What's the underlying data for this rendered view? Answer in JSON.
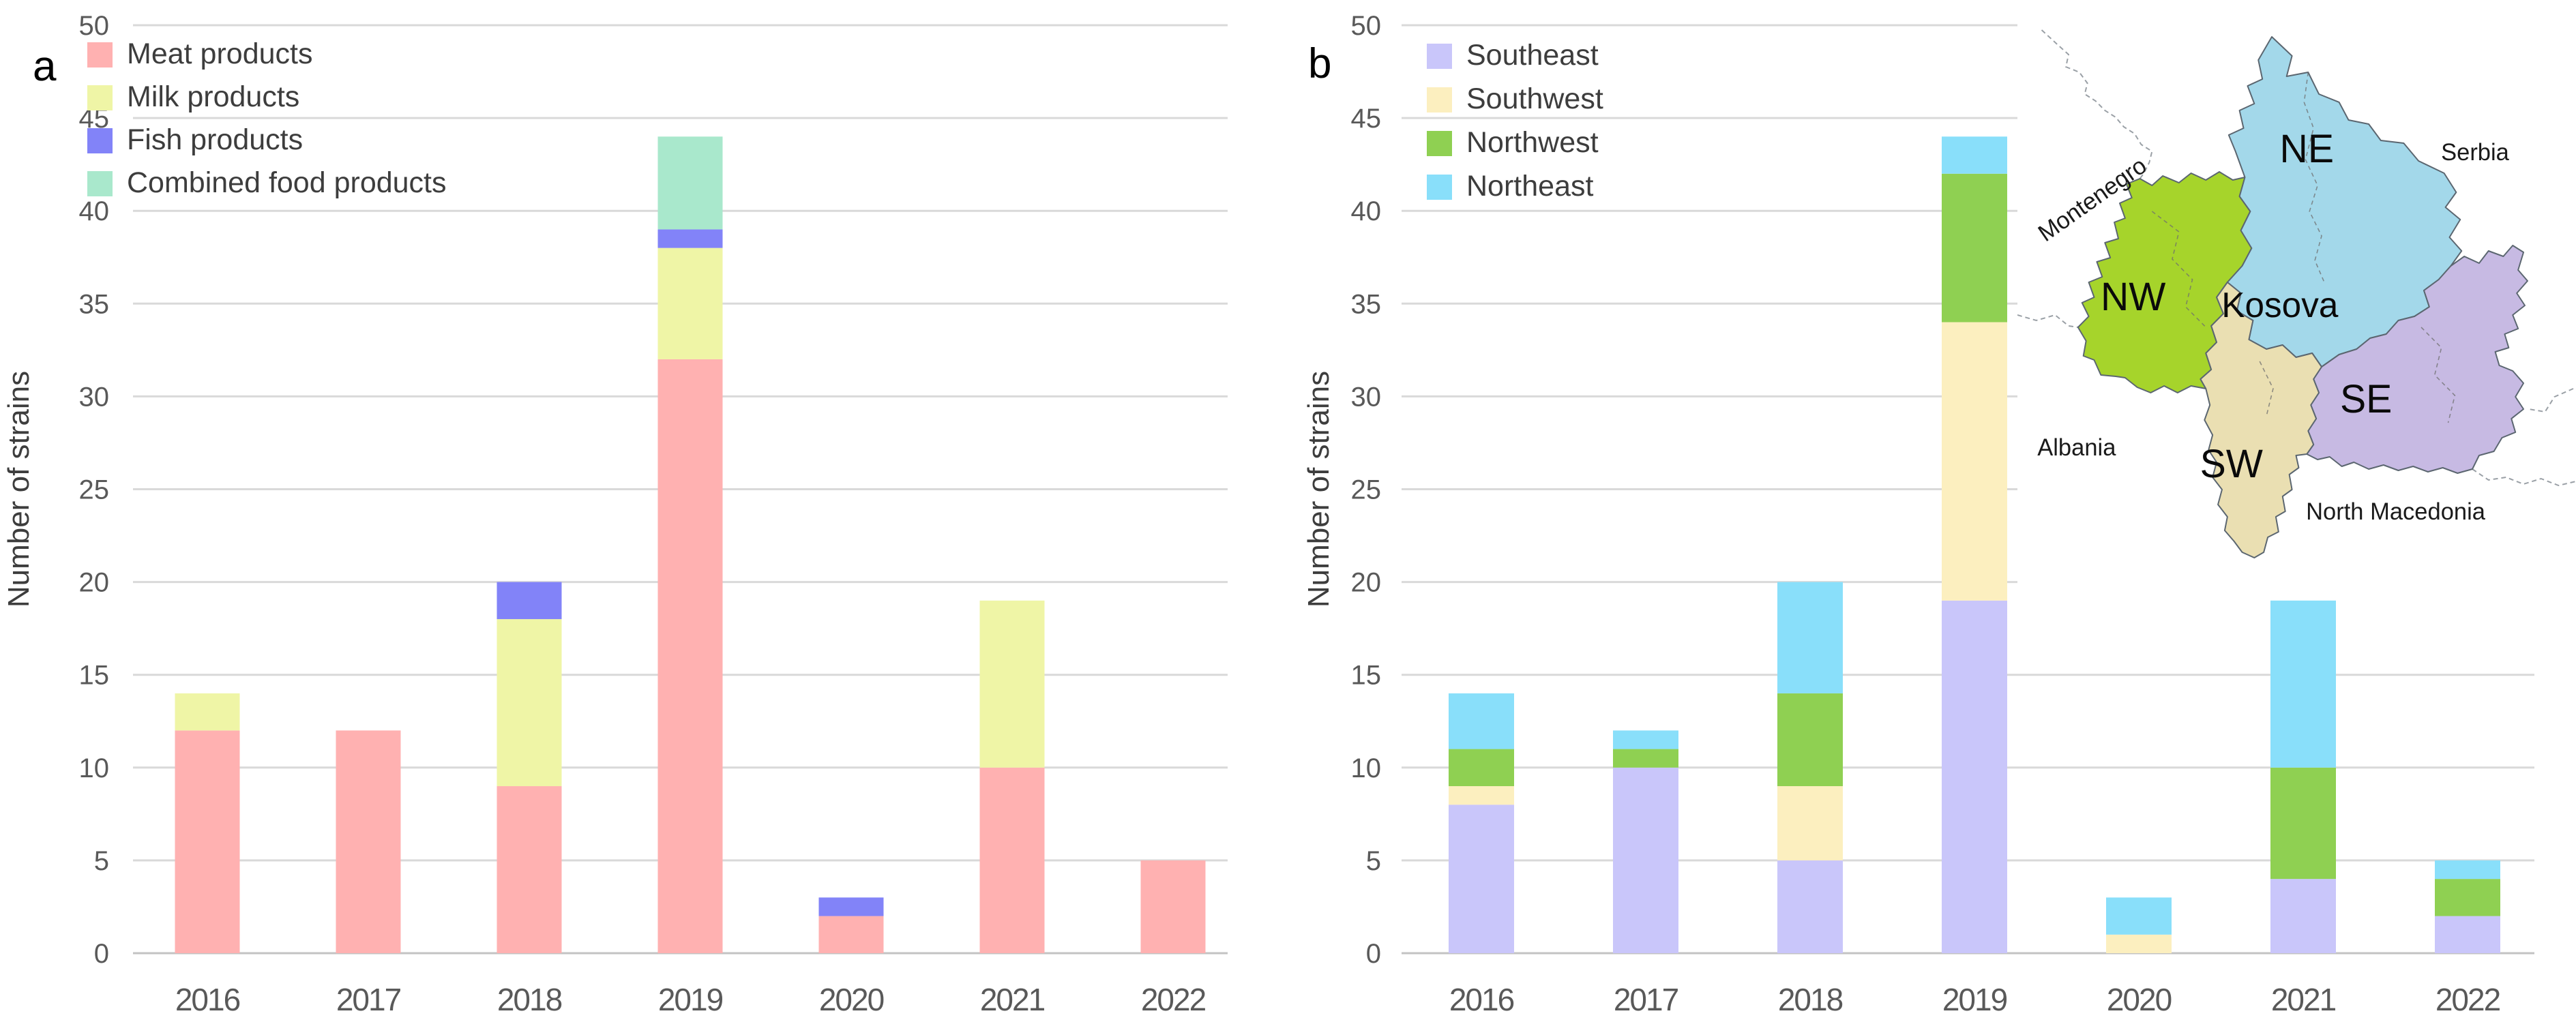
{
  "figure": {
    "panels": [
      {
        "letter": "a"
      },
      {
        "letter": "b"
      }
    ]
  },
  "chart_data": [
    {
      "id": "chart-a",
      "type": "bar",
      "stacked": true,
      "title": "",
      "xlabel": "",
      "ylabel": "Number of strains",
      "ylim": [
        0,
        50
      ],
      "yticks": [
        0,
        5,
        10,
        15,
        20,
        25,
        30,
        35,
        40,
        45,
        50
      ],
      "grid": true,
      "legend_position": "top-left",
      "categories": [
        "2016",
        "2017",
        "2018",
        "2019",
        "2020",
        "2021",
        "2022"
      ],
      "series": [
        {
          "name": "Meat products",
          "color": "#FFB1B1",
          "values": [
            12,
            12,
            9,
            32,
            2,
            10,
            5
          ]
        },
        {
          "name": "Milk products",
          "color": "#EFF5A6",
          "values": [
            2,
            0,
            9,
            6,
            0,
            9,
            0
          ]
        },
        {
          "name": "Fish products",
          "color": "#8283F8",
          "values": [
            0,
            0,
            2,
            1,
            1,
            0,
            0
          ]
        },
        {
          "name": "Combined food products",
          "color": "#A9E8CC",
          "values": [
            0,
            0,
            0,
            5,
            0,
            0,
            0
          ]
        }
      ]
    },
    {
      "id": "chart-b",
      "type": "bar",
      "stacked": true,
      "title": "",
      "xlabel": "",
      "ylabel": "Number of strains",
      "ylim": [
        0,
        50
      ],
      "yticks": [
        0,
        5,
        10,
        15,
        20,
        25,
        30,
        35,
        40,
        45,
        50
      ],
      "grid": true,
      "legend_position": "top-left",
      "categories": [
        "2016",
        "2017",
        "2018",
        "2019",
        "2020",
        "2021",
        "2022"
      ],
      "series": [
        {
          "name": "Southeast",
          "color": "#C9C6FA",
          "values": [
            8,
            10,
            5,
            19,
            0,
            4,
            2
          ]
        },
        {
          "name": "Southwest",
          "color": "#FCEFBF",
          "values": [
            1,
            0,
            4,
            15,
            1,
            0,
            0
          ]
        },
        {
          "name": "Northwest",
          "color": "#8FD052",
          "values": [
            2,
            1,
            5,
            8,
            0,
            6,
            2
          ]
        },
        {
          "name": "Northeast",
          "color": "#89DFFA",
          "values": [
            3,
            1,
            6,
            2,
            2,
            9,
            1
          ]
        }
      ]
    }
  ],
  "map": {
    "kosova_label": "Kosova",
    "region_labels": [
      {
        "id": "NE",
        "text": "NE"
      },
      {
        "id": "NW",
        "text": "NW"
      },
      {
        "id": "SW",
        "text": "SW"
      },
      {
        "id": "SE",
        "text": "SE"
      }
    ],
    "country_labels": {
      "montenegro": "Montenegro",
      "serbia": "Serbia",
      "albania": "Albania",
      "north_macedonia": "North Macedonia"
    },
    "region_colors": {
      "NE": "#A3D8EA",
      "NW": "#A6D42B",
      "SW": "#EADFB2",
      "SE": "#C7BAE3"
    }
  }
}
